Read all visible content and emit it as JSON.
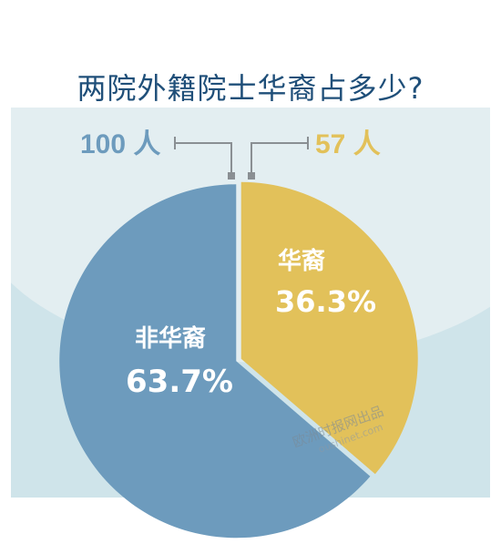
{
  "chart_data": {
    "type": "pie",
    "title": "两院外籍院士华裔占多少?",
    "slices": [
      {
        "name": "华裔",
        "percent_label": "36.3%",
        "value": 36.3,
        "count_label": "57 人",
        "color": "#e2c15a"
      },
      {
        "name": "非华裔",
        "percent_label": "63.7%",
        "value": 63.7,
        "count_label": "100 人",
        "color": "#6d9bbd"
      }
    ]
  },
  "colors": {
    "title": "#1f4f79",
    "callout_line": "#8a8f93",
    "background": "#cfe4ea"
  },
  "watermark": {
    "text": "欧洲时报网出品",
    "url": "oushinet.com"
  }
}
